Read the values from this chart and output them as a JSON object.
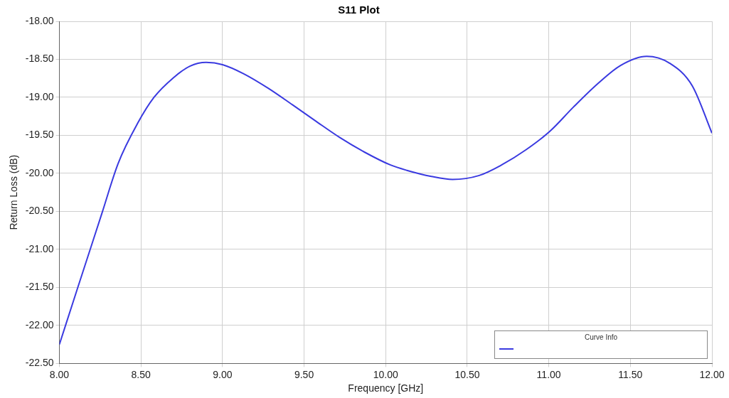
{
  "chart_data": {
    "type": "line",
    "title": "S11 Plot",
    "xlabel": "Frequency [GHz]",
    "ylabel": "Return Loss (dB)",
    "legend_title": "Curve Info",
    "grid": true,
    "marker": "none",
    "line_style": "solid",
    "xlim": [
      8,
      12
    ],
    "ylim": [
      -22.5,
      -18
    ],
    "xticks": [
      {
        "value": 8,
        "label": "8.00"
      },
      {
        "value": 8.5,
        "label": "8.50"
      },
      {
        "value": 9,
        "label": "9.00"
      },
      {
        "value": 9.5,
        "label": "9.50"
      },
      {
        "value": 10,
        "label": "10.00"
      },
      {
        "value": 10.5,
        "label": "10.50"
      },
      {
        "value": 11,
        "label": "11.00"
      },
      {
        "value": 11.5,
        "label": "11.50"
      },
      {
        "value": 12,
        "label": "12.00"
      }
    ],
    "yticks": [
      {
        "value": -22.5,
        "label": "-22.50"
      },
      {
        "value": -22,
        "label": "-22.00"
      },
      {
        "value": -21.5,
        "label": "-21.50"
      },
      {
        "value": -21,
        "label": "-21.00"
      },
      {
        "value": -20.5,
        "label": "-20.50"
      },
      {
        "value": -20,
        "label": "-20.00"
      },
      {
        "value": -19.5,
        "label": "-19.50"
      },
      {
        "value": -19,
        "label": "-19.00"
      },
      {
        "value": -18.5,
        "label": "-18.50"
      },
      {
        "value": -18,
        "label": "-18.00"
      }
    ],
    "series": [
      {
        "color": "#3a3ae0",
        "x": [
          8.0,
          8.11,
          8.26,
          8.36,
          8.48,
          8.58,
          8.7,
          8.8,
          8.9,
          9.0,
          9.13,
          9.28,
          9.43,
          9.57,
          9.72,
          9.87,
          10.03,
          10.13,
          10.28,
          10.41,
          10.57,
          10.71,
          10.86,
          11.01,
          11.15,
          11.3,
          11.44,
          11.6,
          11.74,
          11.88,
          12.0
        ],
        "values": [
          -22.25,
          -21.52,
          -20.53,
          -19.87,
          -19.34,
          -19.0,
          -18.74,
          -18.59,
          -18.54,
          -18.57,
          -18.69,
          -18.88,
          -19.1,
          -19.31,
          -19.53,
          -19.72,
          -19.89,
          -19.96,
          -20.04,
          -20.08,
          -20.03,
          -19.89,
          -19.69,
          -19.44,
          -19.13,
          -18.82,
          -18.58,
          -18.46,
          -18.55,
          -18.85,
          -19.47
        ]
      }
    ]
  }
}
